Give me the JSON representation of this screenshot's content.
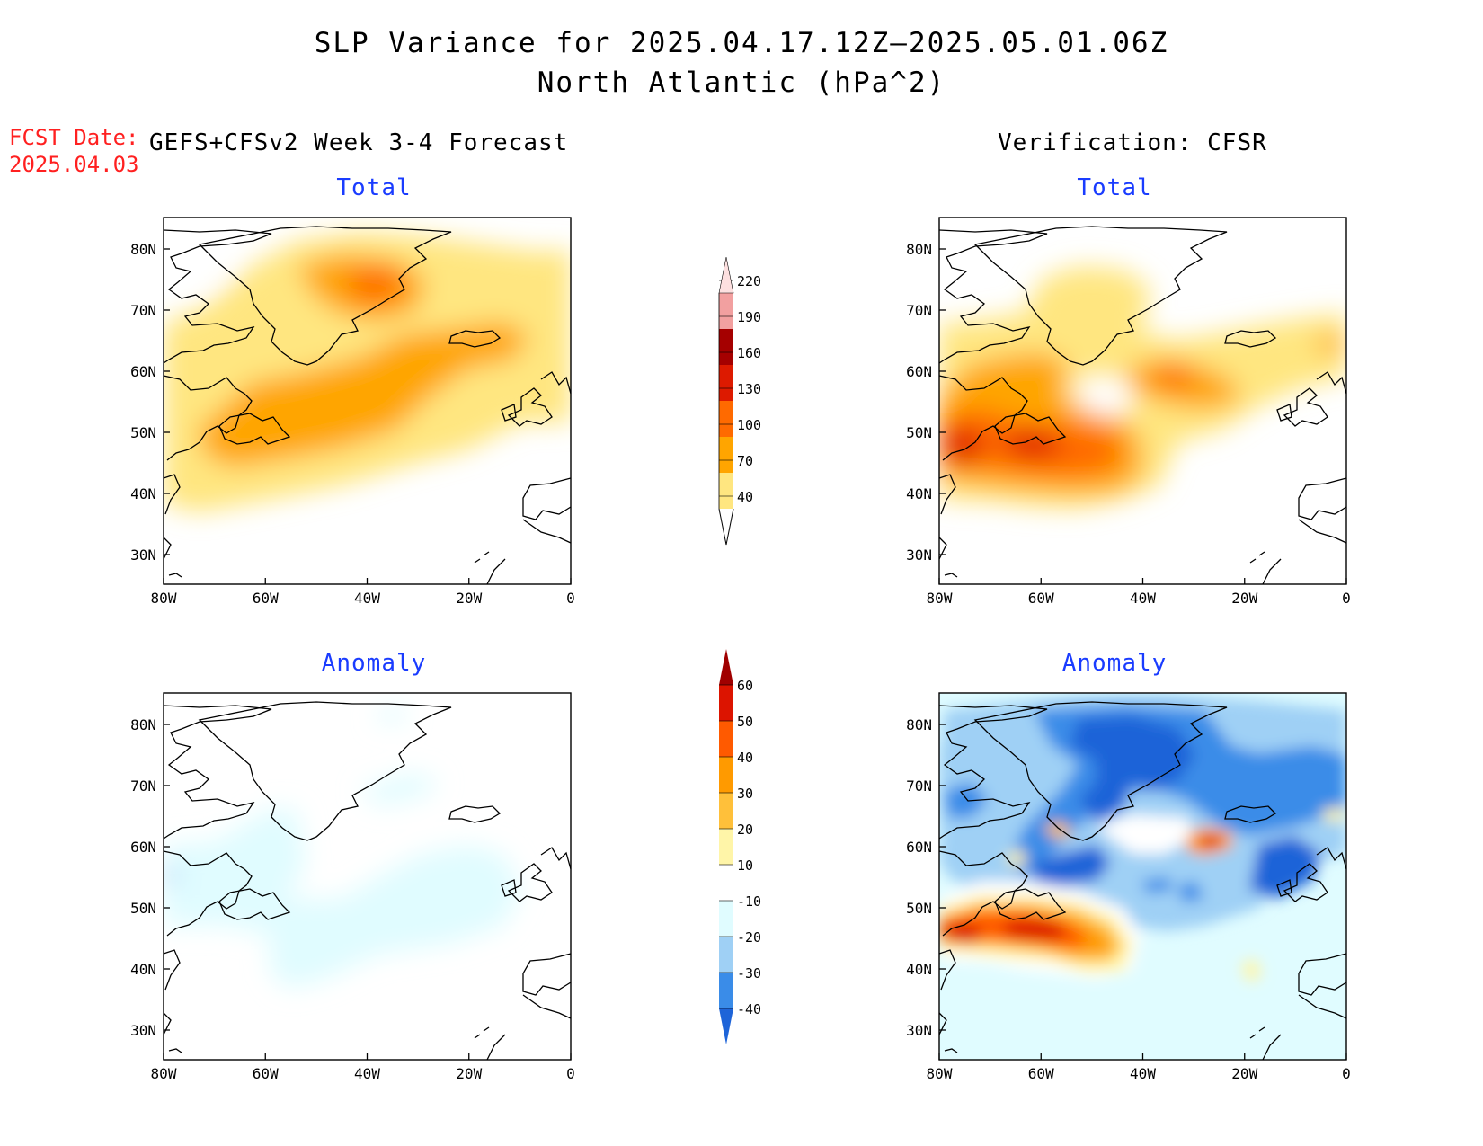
{
  "title": {
    "line1": "SLP Variance for 2025.04.17.12Z–2025.05.01.06Z",
    "line2": "North Atlantic (hPa^2)"
  },
  "fcst": {
    "label": "FCST Date:",
    "date": "2025.04.03"
  },
  "left_header": "GEFS+CFSv2 Week 3-4 Forecast",
  "right_header": "Verification: CFSR",
  "panels": {
    "total_fcst": "Total",
    "total_verif": "Total",
    "anom_fcst": "Anomaly",
    "anom_verif": "Anomaly"
  },
  "axes": {
    "lat_labels": [
      "80N",
      "70N",
      "60N",
      "50N",
      "40N",
      "30N"
    ],
    "lon_labels": [
      "80W",
      "60W",
      "40W",
      "20W",
      "0"
    ]
  },
  "colorbars": {
    "total": {
      "ticks": [
        "40",
        "70",
        "100",
        "130",
        "160",
        "190",
        "220"
      ],
      "colors": [
        "#ffe680",
        "#ffa500",
        "#ff6a00",
        "#dd1a00",
        "#a50000",
        "#f2a0a0",
        "#fde0e0"
      ]
    },
    "anomaly": {
      "ticks": [
        "-40",
        "-30",
        "-20",
        "-10",
        "10",
        "20",
        "30",
        "40",
        "50",
        "60"
      ],
      "colors": [
        "#1e64d8",
        "#3a8ce8",
        "#9fd0f5",
        "#e0fcff",
        "#ffffff",
        "#fff5a8",
        "#ffc03a",
        "#ff9a00",
        "#ff5a00",
        "#dc1400",
        "#a00000"
      ]
    }
  }
}
